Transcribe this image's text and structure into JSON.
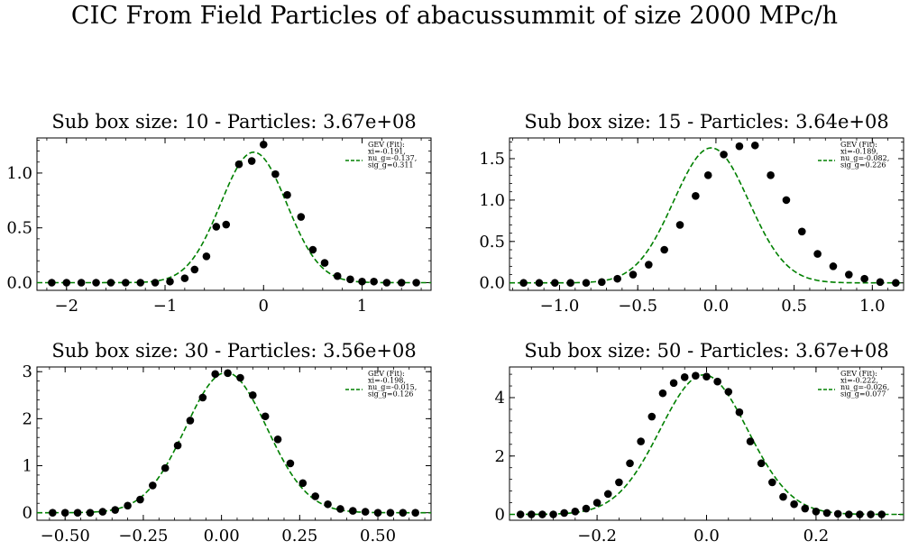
{
  "suptitle": "CIC From Field Particles of abacussummit of size 2000 MPc/h",
  "chart_data": [
    {
      "type": "scatter",
      "title": "Sub box size: 10 - Particles: 3.67e+08",
      "xlim": [
        -2.3,
        1.7
      ],
      "ylim": [
        -0.07,
        1.32
      ],
      "xticks": [
        -2,
        -1,
        0,
        1
      ],
      "xticklabels": [
        "−2",
        "−1",
        "0",
        "1"
      ],
      "yticks": [
        0.0,
        0.5,
        1.0
      ],
      "yticklabels": [
        "0.0",
        "0.5",
        "1.0"
      ],
      "points": {
        "x": [
          -2.15,
          -2.0,
          -1.85,
          -1.7,
          -1.55,
          -1.4,
          -1.25,
          -1.1,
          -0.95,
          -0.8,
          -0.7,
          -0.58,
          -0.48,
          -0.38,
          -0.25,
          -0.12,
          0.0,
          0.12,
          0.24,
          0.38,
          0.5,
          0.62,
          0.75,
          0.88,
          1.0,
          1.12,
          1.25,
          1.4,
          1.55
        ],
        "y": [
          0.0,
          0.0,
          0.0,
          0.0,
          0.0,
          0.0,
          0.0,
          0.0,
          0.01,
          0.04,
          0.12,
          0.24,
          0.51,
          0.53,
          1.08,
          1.11,
          1.26,
          0.99,
          0.8,
          0.6,
          0.3,
          0.18,
          0.06,
          0.03,
          0.01,
          0.01,
          0.0,
          0.0,
          0.0
        ]
      },
      "fit": {
        "mu": -0.1,
        "sigma": 0.335,
        "amp": 1.19
      },
      "legend": {
        "label": "GEV (Fit):",
        "lines": [
          "xi=-0.191,",
          "nu_g=-0.137,",
          "sig_g=0.311"
        ],
        "placement": "top-right"
      },
      "series": [
        {
          "name": "GEV (Fit):",
          "style": "dashed",
          "color": "#008000"
        }
      ],
      "marker_color": "#000000"
    },
    {
      "type": "scatter",
      "title": "Sub box size: 15 - Particles: 3.64e+08",
      "xlim": [
        -1.32,
        1.2
      ],
      "ylim": [
        -0.09,
        1.75
      ],
      "xticks": [
        -1.0,
        -0.5,
        0.0,
        0.5,
        1.0
      ],
      "xticklabels": [
        "−1.0",
        "−0.5",
        "0.0",
        "0.5",
        "1.0"
      ],
      "yticks": [
        0.0,
        0.5,
        1.0,
        1.5
      ],
      "yticklabels": [
        "0.0",
        "0.5",
        "1.0",
        "1.5"
      ],
      "points": {
        "x": [
          -1.23,
          -1.13,
          -1.03,
          -0.93,
          -0.83,
          -0.73,
          -0.63,
          -0.53,
          -0.43,
          -0.33,
          -0.23,
          -0.13,
          -0.05,
          0.05,
          0.15,
          0.25,
          0.35,
          0.45,
          0.55,
          0.65,
          0.75,
          0.85,
          0.95,
          1.05,
          1.15
        ],
        "y": [
          0.0,
          0.0,
          0.0,
          0.0,
          0.0,
          0.01,
          0.05,
          0.1,
          0.22,
          0.4,
          0.7,
          1.05,
          1.3,
          1.55,
          1.65,
          1.66,
          1.3,
          1.0,
          0.62,
          0.35,
          0.2,
          0.1,
          0.05,
          0.01,
          0.0
        ]
      },
      "fit": {
        "mu": -0.03,
        "sigma": 0.24,
        "amp": 1.63
      },
      "legend": {
        "label": "GEV (Fit):",
        "lines": [
          "xi=-0.189,",
          "nu_g=-0.082,",
          "sig_g=0.226"
        ],
        "placement": "top-right"
      },
      "series": [
        {
          "name": "GEV (Fit):",
          "style": "dashed",
          "color": "#008000"
        }
      ],
      "marker_color": "#000000"
    },
    {
      "type": "scatter",
      "title": "Sub box size: 30 - Particles: 3.56e+08",
      "xlim": [
        -0.59,
        0.67
      ],
      "ylim": [
        -0.16,
        3.1
      ],
      "xticks": [
        -0.5,
        -0.25,
        0.0,
        0.25,
        0.5
      ],
      "xticklabels": [
        "−0.50",
        "−0.25",
        "0.00",
        "0.25",
        "0.50"
      ],
      "yticks": [
        0,
        1,
        2,
        3
      ],
      "yticklabels": [
        "0",
        "1",
        "2",
        "3"
      ],
      "points": {
        "x": [
          -0.54,
          -0.5,
          -0.46,
          -0.42,
          -0.38,
          -0.34,
          -0.3,
          -0.26,
          -0.22,
          -0.18,
          -0.14,
          -0.1,
          -0.06,
          -0.02,
          0.02,
          0.06,
          0.1,
          0.14,
          0.18,
          0.22,
          0.26,
          0.3,
          0.34,
          0.38,
          0.42,
          0.46,
          0.5,
          0.54,
          0.58,
          0.62
        ],
        "y": [
          0.0,
          0.0,
          0.0,
          0.0,
          0.02,
          0.06,
          0.15,
          0.28,
          0.58,
          0.95,
          1.43,
          1.96,
          2.45,
          2.95,
          2.97,
          2.87,
          2.5,
          2.05,
          1.56,
          1.05,
          0.63,
          0.35,
          0.18,
          0.08,
          0.04,
          0.02,
          0.0,
          0.0,
          0.0,
          0.0
        ]
      },
      "fit": {
        "mu": 0.015,
        "sigma": 0.13,
        "amp": 2.98
      },
      "legend": {
        "label": "GEV (Fit):",
        "lines": [
          "xi=-0.198,",
          "nu_g=-0.015,",
          "sig_g=0.126"
        ],
        "placement": "top-right"
      },
      "series": [
        {
          "name": "GEV (Fit):",
          "style": "dashed",
          "color": "#008000"
        }
      ],
      "marker_color": "#000000"
    },
    {
      "type": "scatter",
      "title": "Sub box size: 50 - Particles: 3.67e+08",
      "xlim": [
        -0.36,
        0.36
      ],
      "ylim": [
        -0.2,
        5.05
      ],
      "xticks": [
        -0.2,
        0.0,
        0.2
      ],
      "xticklabels": [
        "−0.2",
        "0.0",
        "0.2"
      ],
      "yticks": [
        0,
        2,
        4
      ],
      "yticklabels": [
        "0",
        "2",
        "4"
      ],
      "points": {
        "x": [
          -0.34,
          -0.32,
          -0.3,
          -0.28,
          -0.26,
          -0.24,
          -0.22,
          -0.2,
          -0.18,
          -0.16,
          -0.14,
          -0.12,
          -0.1,
          -0.08,
          -0.06,
          -0.04,
          -0.02,
          0.0,
          0.02,
          0.04,
          0.06,
          0.08,
          0.1,
          0.12,
          0.14,
          0.16,
          0.18,
          0.2,
          0.22,
          0.24,
          0.26,
          0.28,
          0.3,
          0.32
        ],
        "y": [
          0.0,
          0.0,
          0.0,
          0.0,
          0.05,
          0.1,
          0.2,
          0.4,
          0.7,
          1.1,
          1.75,
          2.5,
          3.35,
          4.15,
          4.5,
          4.7,
          4.75,
          4.72,
          4.55,
          4.2,
          3.5,
          2.5,
          1.75,
          1.1,
          0.6,
          0.35,
          0.2,
          0.1,
          0.05,
          0.02,
          0.0,
          0.0,
          0.0,
          0.0
        ]
      },
      "fit": {
        "mu": -0.005,
        "sigma": 0.08,
        "amp": 4.78
      },
      "legend": {
        "label": "GEV (Fit):",
        "lines": [
          "xi=-0.222,",
          "nu_g=-0.026,",
          "sig_g=0.077"
        ],
        "placement": "top-right"
      },
      "series": [
        {
          "name": "GEV (Fit):",
          "style": "dashed",
          "color": "#008000"
        }
      ],
      "marker_color": "#000000"
    }
  ]
}
